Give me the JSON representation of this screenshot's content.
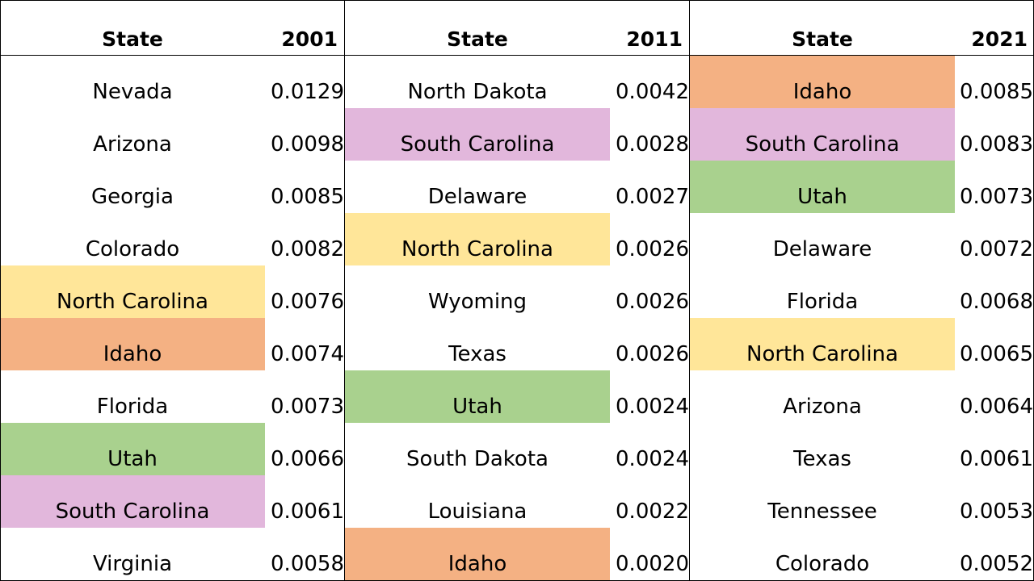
{
  "highlight_colors": {
    "North Carolina": "#FFE699",
    "Idaho": "#F4B183",
    "Utah": "#A9D18E",
    "South Carolina": "#E2B7DC"
  },
  "panels": [
    {
      "header_state": "State",
      "header_year": "2001",
      "rows": [
        {
          "state": "Nevada",
          "value": "0.0129",
          "highlight": ""
        },
        {
          "state": "Arizona",
          "value": "0.0098",
          "highlight": ""
        },
        {
          "state": "Georgia",
          "value": "0.0085",
          "highlight": ""
        },
        {
          "state": "Colorado",
          "value": "0.0082",
          "highlight": ""
        },
        {
          "state": "North Carolina",
          "value": "0.0076",
          "highlight": "#FFE699"
        },
        {
          "state": "Idaho",
          "value": "0.0074",
          "highlight": "#F4B183"
        },
        {
          "state": "Florida",
          "value": "0.0073",
          "highlight": ""
        },
        {
          "state": "Utah",
          "value": "0.0066",
          "highlight": "#A9D18E"
        },
        {
          "state": "South Carolina",
          "value": "0.0061",
          "highlight": "#E2B7DC"
        },
        {
          "state": "Virginia",
          "value": "0.0058",
          "highlight": ""
        }
      ]
    },
    {
      "header_state": "State",
      "header_year": "2011",
      "rows": [
        {
          "state": "North Dakota",
          "value": "0.0042",
          "highlight": ""
        },
        {
          "state": "South Carolina",
          "value": "0.0028",
          "highlight": "#E2B7DC"
        },
        {
          "state": "Delaware",
          "value": "0.0027",
          "highlight": ""
        },
        {
          "state": "North Carolina",
          "value": "0.0026",
          "highlight": "#FFE699"
        },
        {
          "state": "Wyoming",
          "value": "0.0026",
          "highlight": ""
        },
        {
          "state": "Texas",
          "value": "0.0026",
          "highlight": ""
        },
        {
          "state": "Utah",
          "value": "0.0024",
          "highlight": "#A9D18E"
        },
        {
          "state": "South Dakota",
          "value": "0.0024",
          "highlight": ""
        },
        {
          "state": "Louisiana",
          "value": "0.0022",
          "highlight": ""
        },
        {
          "state": "Idaho",
          "value": "0.0020",
          "highlight": "#F4B183"
        }
      ]
    },
    {
      "header_state": "State",
      "header_year": "2021",
      "rows": [
        {
          "state": "Idaho",
          "value": "0.0085",
          "highlight": "#F4B183"
        },
        {
          "state": "South Carolina",
          "value": "0.0083",
          "highlight": "#E2B7DC"
        },
        {
          "state": "Utah",
          "value": "0.0073",
          "highlight": "#A9D18E"
        },
        {
          "state": "Delaware",
          "value": "0.0072",
          "highlight": ""
        },
        {
          "state": "Florida",
          "value": "0.0068",
          "highlight": ""
        },
        {
          "state": "North Carolina",
          "value": "0.0065",
          "highlight": "#FFE699"
        },
        {
          "state": "Arizona",
          "value": "0.0064",
          "highlight": ""
        },
        {
          "state": "Texas",
          "value": "0.0061",
          "highlight": ""
        },
        {
          "state": "Tennessee",
          "value": "0.0053",
          "highlight": ""
        },
        {
          "state": "Colorado",
          "value": "0.0052",
          "highlight": ""
        }
      ]
    }
  ]
}
